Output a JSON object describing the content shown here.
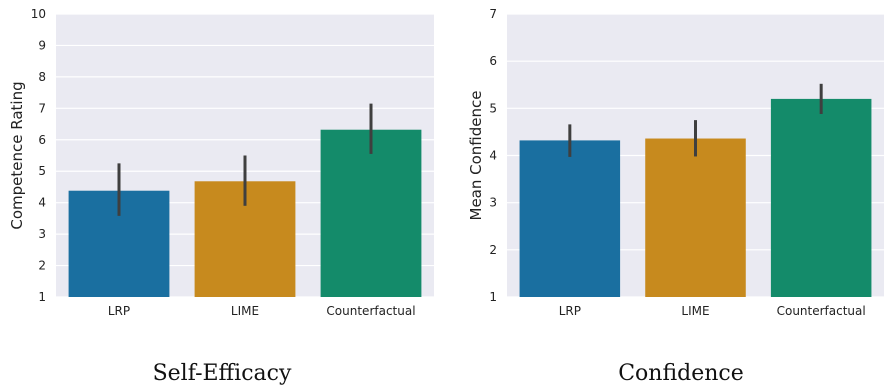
{
  "chart_data": [
    {
      "type": "bar",
      "title": "",
      "caption": "Self-Efficacy",
      "xlabel": "",
      "ylabel": "Competence Rating",
      "ylim": [
        1,
        10
      ],
      "yticks": [
        1,
        2,
        3,
        4,
        5,
        6,
        7,
        8,
        9,
        10
      ],
      "categories": [
        "LRP",
        "LIME",
        "Counterfactual"
      ],
      "values": [
        4.38,
        4.68,
        6.32
      ],
      "error_low": [
        3.58,
        3.9,
        5.55
      ],
      "error_high": [
        5.25,
        5.5,
        7.15
      ],
      "grid": true
    },
    {
      "type": "bar",
      "title": "",
      "caption": "Confidence",
      "xlabel": "",
      "ylabel": "Mean Confidence",
      "ylim": [
        1,
        7
      ],
      "yticks": [
        1,
        2,
        3,
        4,
        5,
        6,
        7
      ],
      "categories": [
        "LRP",
        "LIME",
        "Counterfactual"
      ],
      "values": [
        4.32,
        4.36,
        5.2
      ],
      "error_low": [
        3.97,
        3.98,
        4.88
      ],
      "error_high": [
        4.66,
        4.75,
        5.52
      ],
      "grid": true
    }
  ],
  "colors": {
    "background": "#eaeaf2",
    "grid": "#ffffff",
    "bars": [
      "#1a6fa0",
      "#c78a1e",
      "#148b6a"
    ],
    "error": "#3f3f3f"
  }
}
